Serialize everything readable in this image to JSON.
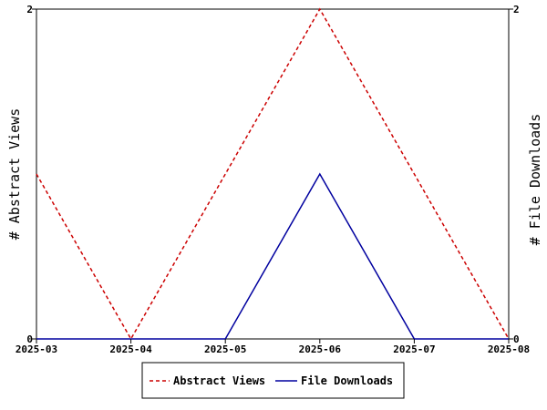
{
  "chart_data": {
    "type": "line",
    "title": "",
    "x": [
      "2025-03",
      "2025-04",
      "2025-05",
      "2025-06",
      "2025-07",
      "2025-08"
    ],
    "y_left": {
      "label": "# Abstract Views",
      "ylim": [
        0,
        2
      ],
      "ticks": [
        "0",
        "2"
      ]
    },
    "y_right": {
      "label": "# File Downloads",
      "ylim": [
        0,
        2
      ],
      "ticks": [
        "0",
        "2"
      ]
    },
    "series": [
      {
        "name": "Abstract Views",
        "axis": "left",
        "style": "dashed",
        "color": "#cc0000",
        "values": [
          1,
          0,
          1,
          2,
          1,
          0
        ]
      },
      {
        "name": "File Downloads",
        "axis": "right",
        "style": "solid",
        "color": "#00009f",
        "values": [
          0,
          0,
          0,
          1,
          0,
          0
        ]
      }
    ],
    "grid": false,
    "legend": "bottom-center"
  }
}
